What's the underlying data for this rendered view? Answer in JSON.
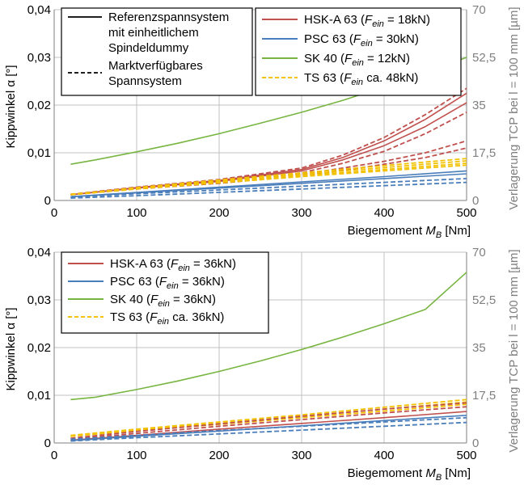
{
  "chart_data": [
    {
      "type": "line",
      "xlabel": "Biegemoment",
      "xlabel_sub": "B",
      "xlabel_unit": "[Nm]",
      "ylabel": "Kippwinkel α [°]",
      "y2label": "Verlagerung TCP bei l = 100 mm [µm]",
      "xlim": [
        0,
        500
      ],
      "ylim": [
        0,
        0.04
      ],
      "y2lim": [
        0,
        70
      ],
      "xticks": [
        "0",
        "100",
        "200",
        "300",
        "400",
        "500"
      ],
      "yticks": [
        "0",
        "0,01",
        "0,02",
        "0,03",
        "0,04"
      ],
      "y2ticks": [
        "0",
        "17,5",
        "35",
        "52,5",
        "70"
      ],
      "grid": true,
      "legend_style": {
        "placement": "top-left",
        "entries": [
          {
            "label": "Referenzspannsystem mit einheitlichem Spindeldummy",
            "lines": [
              "Referenzspannsystem",
              "mit einheitlichem",
              "Spindeldummy"
            ],
            "style": "solid",
            "color": "#000000"
          },
          {
            "label": "Marktverfügbares Spannsystem",
            "lines": [
              "Marktverfügbares",
              "Spannsystem"
            ],
            "style": "dashed",
            "color": "#000000"
          }
        ]
      },
      "legend_series": {
        "placement": "top-right",
        "entries": [
          {
            "pre": "HSK-A 63 (",
            "sym": "F",
            "sub": "ein",
            "post": " = 18kN)",
            "color": "#c0504d",
            "style": "solid"
          },
          {
            "pre": "PSC 63 (",
            "sym": "F",
            "sub": "ein",
            "post": " = 30kN)",
            "color": "#4a7ebb",
            "style": "solid"
          },
          {
            "pre": "SK 40 (",
            "sym": "F",
            "sub": "ein",
            "post": " = 12kN)",
            "color": "#77b540",
            "style": "solid"
          },
          {
            "pre": "TS 63 (",
            "sym": "F",
            "sub": "ein",
            "post": " ca. 48kN)",
            "color": "#f2c200",
            "style": "dashed"
          }
        ]
      },
      "series": [
        {
          "name": "HSK-A 63",
          "color": "#c0504d",
          "style": "solid",
          "x": [
            20,
            100,
            200,
            300,
            350,
            400,
            450,
            500
          ],
          "values": [
            0.0012,
            0.0026,
            0.004,
            0.0062,
            0.0085,
            0.0115,
            0.0155,
            0.0205
          ]
        },
        {
          "name": "HSK-A 63",
          "color": "#c0504d",
          "style": "solid",
          "x": [
            20,
            100,
            200,
            300,
            350,
            400,
            450,
            500
          ],
          "values": [
            0.0012,
            0.0027,
            0.0042,
            0.0065,
            0.009,
            0.0125,
            0.017,
            0.0225
          ]
        },
        {
          "name": "HSK-A 63",
          "color": "#c0504d",
          "style": "dashed",
          "x": [
            20,
            100,
            200,
            300,
            350,
            400,
            450,
            500
          ],
          "values": [
            0.0013,
            0.0028,
            0.0044,
            0.0068,
            0.0095,
            0.0132,
            0.018,
            0.0235
          ]
        },
        {
          "name": "HSK-A 63",
          "color": "#c0504d",
          "style": "dashed",
          "x": [
            20,
            100,
            200,
            300,
            350,
            400,
            450,
            500
          ],
          "values": [
            0.0012,
            0.0025,
            0.0038,
            0.0058,
            0.0078,
            0.0103,
            0.014,
            0.0185
          ]
        },
        {
          "name": "HSK-A 63",
          "color": "#c0504d",
          "style": "dashed",
          "x": [
            20,
            100,
            200,
            300,
            350,
            400,
            450,
            500
          ],
          "values": [
            0.0012,
            0.0025,
            0.0038,
            0.0055,
            0.0068,
            0.0082,
            0.01,
            0.0125
          ]
        },
        {
          "name": "HSK-A 63",
          "color": "#c0504d",
          "style": "dashed",
          "x": [
            20,
            100,
            200,
            300,
            350,
            400,
            450,
            500
          ],
          "values": [
            0.0012,
            0.0024,
            0.0036,
            0.0052,
            0.0063,
            0.0076,
            0.009,
            0.011
          ]
        },
        {
          "name": "PSC 63",
          "color": "#4a7ebb",
          "style": "solid",
          "x": [
            20,
            100,
            200,
            300,
            400,
            500
          ],
          "values": [
            0.0008,
            0.0017,
            0.0028,
            0.0039,
            0.005,
            0.0062
          ]
        },
        {
          "name": "PSC 63",
          "color": "#4a7ebb",
          "style": "solid",
          "x": [
            20,
            100,
            200,
            300,
            400,
            500
          ],
          "values": [
            0.0008,
            0.0016,
            0.0026,
            0.0036,
            0.0046,
            0.0056
          ]
        },
        {
          "name": "PSC 63",
          "color": "#4a7ebb",
          "style": "dashed",
          "x": [
            20,
            100,
            200,
            300,
            400,
            500
          ],
          "values": [
            0.0007,
            0.0014,
            0.0022,
            0.003,
            0.0038,
            0.0046
          ]
        },
        {
          "name": "PSC 63",
          "color": "#4a7ebb",
          "style": "dashed",
          "x": [
            20,
            100,
            200,
            300,
            400,
            500
          ],
          "values": [
            0.0005,
            0.001,
            0.0017,
            0.0024,
            0.0031,
            0.0038
          ]
        },
        {
          "name": "SK 40",
          "color": "#77b540",
          "style": "solid",
          "x": [
            20,
            50,
            100,
            150,
            200,
            250,
            300,
            350,
            400,
            450,
            500
          ],
          "values": [
            0.0076,
            0.0085,
            0.0102,
            0.012,
            0.014,
            0.0162,
            0.0185,
            0.021,
            0.0238,
            0.0268,
            0.03
          ]
        },
        {
          "name": "TS 63",
          "color": "#f2c200",
          "style": "dashed",
          "x": [
            20,
            100,
            200,
            300,
            400,
            500
          ],
          "values": [
            0.0012,
            0.0027,
            0.0043,
            0.0058,
            0.0073,
            0.0088
          ]
        },
        {
          "name": "TS 63",
          "color": "#f2c200",
          "style": "dashed",
          "x": [
            20,
            100,
            200,
            300,
            400,
            500
          ],
          "values": [
            0.0013,
            0.0026,
            0.0041,
            0.0055,
            0.0069,
            0.0083
          ]
        },
        {
          "name": "TS 63",
          "color": "#f2c200",
          "style": "dashed",
          "x": [
            20,
            100,
            200,
            300,
            400,
            500
          ],
          "values": [
            0.0012,
            0.0025,
            0.0039,
            0.0052,
            0.0065,
            0.0078
          ]
        },
        {
          "name": "TS 63",
          "color": "#f2c200",
          "style": "dashed",
          "x": [
            20,
            100,
            200,
            300,
            400,
            500
          ],
          "values": [
            0.0012,
            0.0024,
            0.0037,
            0.005,
            0.0062,
            0.0074
          ]
        }
      ]
    },
    {
      "type": "line",
      "xlabel": "Biegemoment",
      "xlabel_sub": "B",
      "xlabel_unit": "[Nm]",
      "ylabel": "Kippwinkel α [°]",
      "y2label": "Verlagerung TCP bei l = 100 mm [µm]",
      "xlim": [
        0,
        500
      ],
      "ylim": [
        0,
        0.04
      ],
      "y2lim": [
        0,
        70
      ],
      "xticks": [
        "0",
        "100",
        "200",
        "300",
        "400",
        "500"
      ],
      "yticks": [
        "0",
        "0,01",
        "0,02",
        "0,03",
        "0,04"
      ],
      "y2ticks": [
        "0",
        "17,5",
        "35",
        "52,5",
        "70"
      ],
      "grid": true,
      "legend_series": {
        "placement": "top-left",
        "entries": [
          {
            "pre": "HSK-A 63 (",
            "sym": "F",
            "sub": "ein",
            "post": " = 36kN)",
            "color": "#c0504d",
            "style": "solid"
          },
          {
            "pre": "PSC 63 (",
            "sym": "F",
            "sub": "ein",
            "post": " = 36kN)",
            "color": "#4a7ebb",
            "style": "solid"
          },
          {
            "pre": "SK 40 (",
            "sym": "F",
            "sub": "ein",
            "post": " = 36kN)",
            "color": "#77b540",
            "style": "solid"
          },
          {
            "pre": "TS 63 (",
            "sym": "F",
            "sub": "ein",
            "post": " ca. 36kN)",
            "color": "#f2c200",
            "style": "dashed"
          }
        ]
      },
      "series": [
        {
          "name": "SK 40",
          "color": "#77b540",
          "style": "solid",
          "x": [
            20,
            50,
            100,
            150,
            200,
            250,
            300,
            350,
            400,
            450,
            500
          ],
          "values": [
            0.0091,
            0.0096,
            0.0112,
            0.013,
            0.015,
            0.0172,
            0.0196,
            0.0222,
            0.025,
            0.028,
            0.0358
          ]
        },
        {
          "name": "TS 63",
          "color": "#f2c200",
          "style": "dashed",
          "x": [
            20,
            100,
            200,
            300,
            400,
            500
          ],
          "values": [
            0.0016,
            0.0029,
            0.0044,
            0.0059,
            0.0075,
            0.0091
          ]
        },
        {
          "name": "TS 63",
          "color": "#f2c200",
          "style": "dashed",
          "x": [
            20,
            100,
            200,
            300,
            400,
            500
          ],
          "values": [
            0.0015,
            0.0027,
            0.0041,
            0.0056,
            0.0071,
            0.0086
          ]
        },
        {
          "name": "TS 63",
          "color": "#f2c200",
          "style": "dashed",
          "x": [
            20,
            100,
            200,
            300,
            400,
            500
          ],
          "values": [
            0.0014,
            0.0026,
            0.0039,
            0.0053,
            0.0067,
            0.0081
          ]
        },
        {
          "name": "HSK-A 63",
          "color": "#c0504d",
          "style": "solid",
          "x": [
            20,
            100,
            200,
            300,
            400,
            500
          ],
          "values": [
            0.0006,
            0.0016,
            0.0029,
            0.0041,
            0.0053,
            0.0066
          ]
        },
        {
          "name": "HSK-A 63",
          "color": "#c0504d",
          "style": "dashed",
          "x": [
            20,
            100,
            200,
            300,
            400,
            500
          ],
          "values": [
            0.001,
            0.0024,
            0.004,
            0.0056,
            0.0071,
            0.0084
          ]
        },
        {
          "name": "HSK-A 63",
          "color": "#c0504d",
          "style": "dashed",
          "x": [
            20,
            100,
            200,
            300,
            400,
            500
          ],
          "values": [
            0.0008,
            0.002,
            0.0035,
            0.0049,
            0.0063,
            0.0076
          ]
        },
        {
          "name": "PSC 63",
          "color": "#4a7ebb",
          "style": "solid",
          "x": [
            20,
            100,
            200,
            300,
            400,
            500
          ],
          "values": [
            0.0005,
            0.0014,
            0.0025,
            0.0036,
            0.0047,
            0.0058
          ]
        },
        {
          "name": "PSC 63",
          "color": "#4a7ebb",
          "style": "dashed",
          "x": [
            20,
            100,
            200,
            300,
            400,
            500
          ],
          "values": [
            0.0008,
            0.0016,
            0.0026,
            0.0035,
            0.0044,
            0.0053
          ]
        },
        {
          "name": "PSC 63",
          "color": "#4a7ebb",
          "style": "dashed",
          "x": [
            20,
            100,
            200,
            300,
            400,
            500
          ],
          "values": [
            0.0004,
            0.0011,
            0.0019,
            0.0027,
            0.0035,
            0.0043
          ]
        }
      ]
    }
  ]
}
